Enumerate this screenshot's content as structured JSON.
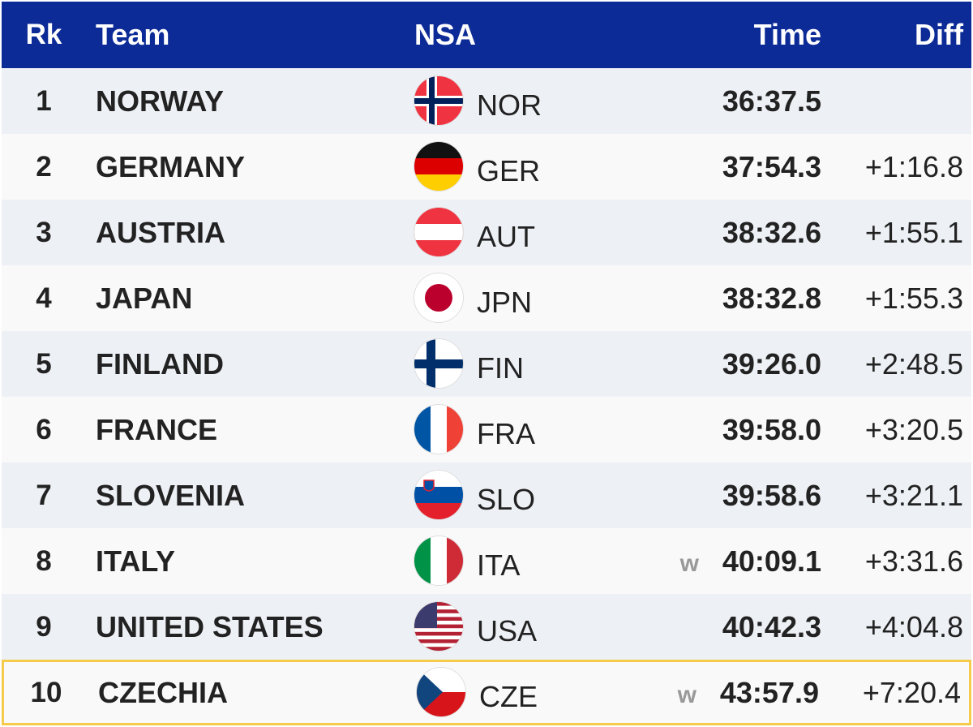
{
  "header": {
    "rank": "Rk",
    "team": "Team",
    "nsa": "NSA",
    "time": "Time",
    "diff": "Diff"
  },
  "rows": [
    {
      "rank": "1",
      "team": "NORWAY",
      "nsa": "NOR",
      "time": "36:37.5"
    },
    {
      "rank": "2",
      "team": "GERMANY",
      "nsa": "GER",
      "time": "37:54.3",
      "diff": "+1:16.8"
    },
    {
      "rank": "3",
      "team": "AUSTRIA",
      "nsa": "AUT",
      "time": "38:32.6",
      "diff": "+1:55.1"
    },
    {
      "rank": "4",
      "team": "JAPAN",
      "nsa": "JPN",
      "time": "38:32.8",
      "diff": "+1:55.3"
    },
    {
      "rank": "5",
      "team": "FINLAND",
      "nsa": "FIN",
      "time": "39:26.0",
      "diff": "+2:48.5"
    },
    {
      "rank": "6",
      "team": "FRANCE",
      "nsa": "FRA",
      "time": "39:58.0",
      "diff": "+3:20.5"
    },
    {
      "rank": "7",
      "team": "SLOVENIA",
      "nsa": "SLO",
      "time": "39:58.6",
      "diff": "+3:21.1"
    },
    {
      "rank": "8",
      "team": "ITALY",
      "nsa": "ITA",
      "time": "40:09.1",
      "diff": "+3:31.6",
      "mark": "w"
    },
    {
      "rank": "9",
      "team": "UNITED STATES",
      "nsa": "USA",
      "time": "40:42.3",
      "diff": "+4:04.8"
    },
    {
      "rank": "10",
      "team": "CZECHIA",
      "nsa": "CZE",
      "time": "43:57.9",
      "diff": "+7:20.4",
      "mark": "w"
    }
  ]
}
